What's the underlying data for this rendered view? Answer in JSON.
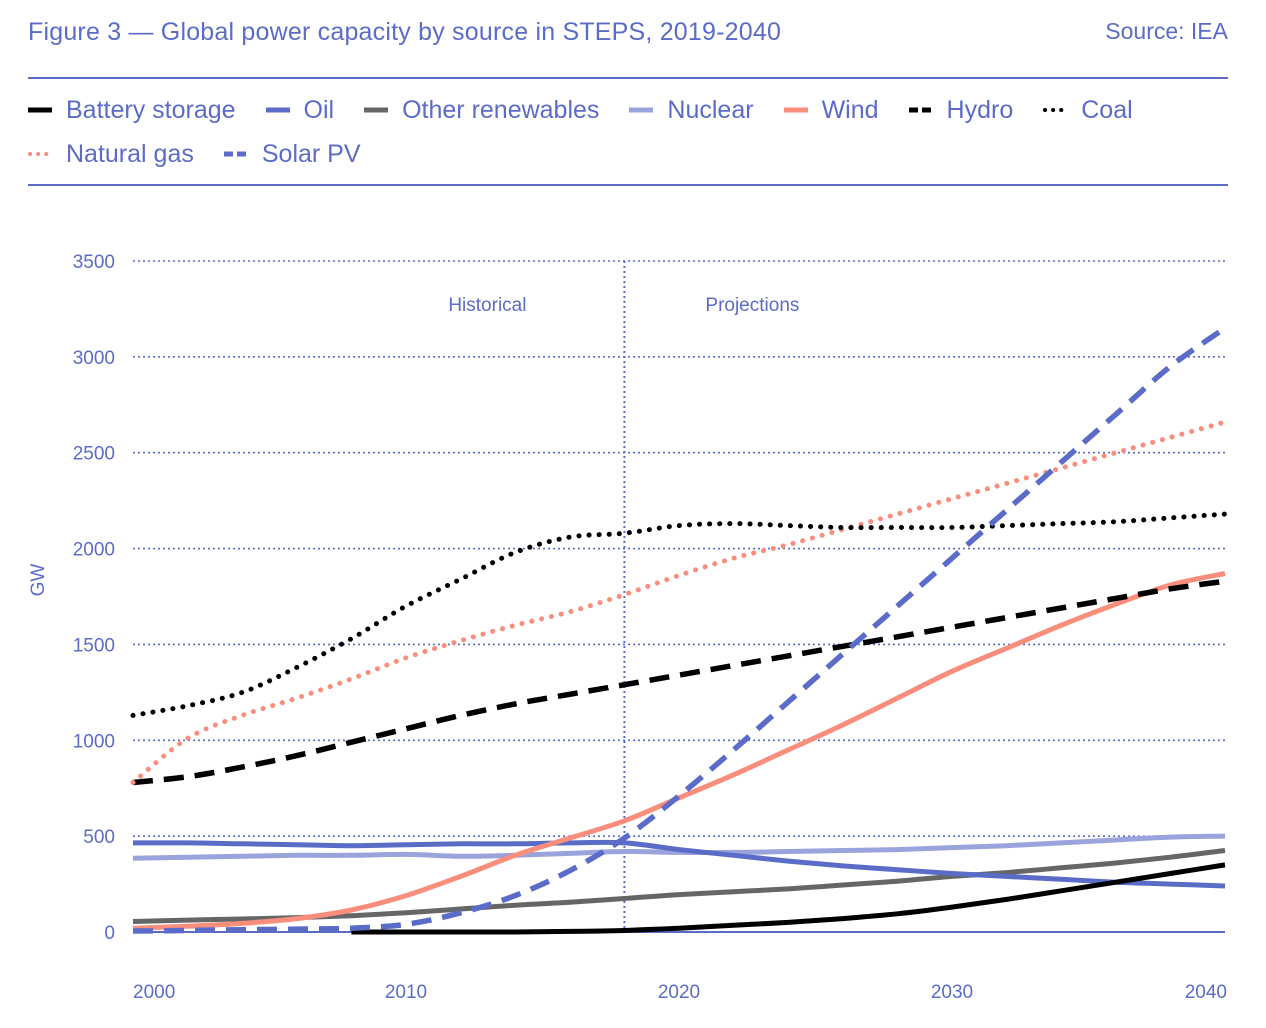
{
  "header": {
    "title": "Figure 3 — Global power capacity by source in STEPS, 2019-2040",
    "source": "Source: IEA"
  },
  "chart_data": {
    "type": "line",
    "title": "Figure 3 — Global power capacity by source in STEPS, 2019-2040",
    "xlabel": "",
    "ylabel": "GW",
    "xlim": [
      2000,
      2040
    ],
    "ylim": [
      0,
      3500
    ],
    "x_ticks": [
      "2000",
      "2010",
      "2020",
      "2030",
      "2040"
    ],
    "y_ticks": [
      "0",
      "500",
      "1000",
      "1500",
      "2000",
      "2500",
      "3000",
      "3500"
    ],
    "grid": "horizontal dotted",
    "divider_year": 2018,
    "annotations": [
      "Historical",
      "Projections"
    ],
    "legend_position": "top",
    "series": [
      {
        "name": "Battery storage",
        "color": "#000000",
        "style": "solid",
        "x": [
          2008,
          2010,
          2012,
          2014,
          2016,
          2018,
          2020,
          2022,
          2024,
          2026,
          2028,
          2030,
          2032,
          2034,
          2036,
          2038,
          2040
        ],
        "values": [
          0,
          0,
          0,
          0,
          3,
          8,
          20,
          35,
          50,
          70,
          95,
          130,
          170,
          215,
          260,
          305,
          350
        ]
      },
      {
        "name": "Oil",
        "color": "#5b6cc8",
        "style": "solid",
        "x": [
          2000,
          2002,
          2004,
          2006,
          2008,
          2010,
          2012,
          2014,
          2016,
          2018,
          2020,
          2022,
          2024,
          2026,
          2028,
          2030,
          2032,
          2034,
          2036,
          2038,
          2040
        ],
        "values": [
          465,
          465,
          460,
          455,
          450,
          455,
          460,
          460,
          465,
          465,
          430,
          400,
          370,
          345,
          325,
          305,
          290,
          275,
          260,
          250,
          240
        ]
      },
      {
        "name": "Other renewables",
        "color": "#666666",
        "style": "solid",
        "x": [
          2000,
          2002,
          2004,
          2006,
          2008,
          2010,
          2012,
          2014,
          2016,
          2018,
          2020,
          2022,
          2024,
          2026,
          2028,
          2030,
          2032,
          2034,
          2036,
          2038,
          2040
        ],
        "values": [
          55,
          62,
          68,
          75,
          85,
          100,
          120,
          140,
          155,
          175,
          195,
          210,
          225,
          245,
          265,
          290,
          310,
          335,
          360,
          390,
          425
        ]
      },
      {
        "name": "Nuclear",
        "color": "#9aa3dc",
        "style": "solid",
        "x": [
          2000,
          2002,
          2004,
          2006,
          2008,
          2010,
          2012,
          2014,
          2016,
          2018,
          2020,
          2022,
          2024,
          2026,
          2028,
          2030,
          2032,
          2034,
          2036,
          2038,
          2040
        ],
        "values": [
          385,
          390,
          395,
          400,
          400,
          405,
          395,
          400,
          410,
          420,
          415,
          415,
          420,
          425,
          430,
          440,
          450,
          465,
          480,
          495,
          500
        ]
      },
      {
        "name": "Wind",
        "color": "#f98e7d",
        "style": "solid",
        "x": [
          2000,
          2002,
          2004,
          2006,
          2008,
          2010,
          2012,
          2014,
          2016,
          2018,
          2020,
          2022,
          2024,
          2026,
          2028,
          2030,
          2032,
          2034,
          2036,
          2038,
          2040
        ],
        "values": [
          20,
          30,
          45,
          70,
          115,
          190,
          290,
          400,
          490,
          580,
          700,
          820,
          950,
          1080,
          1220,
          1360,
          1480,
          1600,
          1710,
          1810,
          1870
        ]
      },
      {
        "name": "Hydro",
        "color": "#000000",
        "style": "dash",
        "x": [
          2000,
          2002,
          2004,
          2006,
          2008,
          2010,
          2012,
          2014,
          2016,
          2018,
          2020,
          2022,
          2024,
          2026,
          2028,
          2030,
          2032,
          2034,
          2036,
          2038,
          2040
        ],
        "values": [
          780,
          810,
          860,
          920,
          990,
          1060,
          1130,
          1190,
          1240,
          1290,
          1340,
          1390,
          1440,
          1490,
          1540,
          1590,
          1640,
          1690,
          1740,
          1790,
          1830
        ]
      },
      {
        "name": "Coal",
        "color": "#000000",
        "style": "dot",
        "x": [
          2000,
          2002,
          2004,
          2006,
          2008,
          2010,
          2012,
          2014,
          2016,
          2018,
          2020,
          2022,
          2024,
          2026,
          2028,
          2030,
          2032,
          2034,
          2036,
          2038,
          2040
        ],
        "values": [
          1130,
          1180,
          1250,
          1380,
          1530,
          1700,
          1840,
          1980,
          2060,
          2080,
          2120,
          2130,
          2120,
          2110,
          2110,
          2110,
          2120,
          2130,
          2140,
          2160,
          2180
        ]
      },
      {
        "name": "Natural gas",
        "color": "#f98e7d",
        "style": "dot",
        "x": [
          2000,
          2002,
          2004,
          2006,
          2008,
          2010,
          2012,
          2014,
          2016,
          2018,
          2020,
          2022,
          2024,
          2026,
          2028,
          2030,
          2032,
          2034,
          2036,
          2038,
          2040
        ],
        "values": [
          780,
          1010,
          1130,
          1220,
          1320,
          1430,
          1520,
          1600,
          1670,
          1760,
          1860,
          1950,
          2020,
          2100,
          2180,
          2260,
          2340,
          2420,
          2500,
          2580,
          2660
        ]
      },
      {
        "name": "Solar PV",
        "color": "#5b6cc8",
        "style": "dash",
        "x": [
          2000,
          2002,
          2004,
          2006,
          2008,
          2010,
          2012,
          2014,
          2016,
          2018,
          2020,
          2022,
          2024,
          2026,
          2028,
          2030,
          2032,
          2034,
          2036,
          2038,
          2040
        ],
        "values": [
          5,
          8,
          12,
          15,
          20,
          40,
          100,
          190,
          320,
          490,
          710,
          950,
          1200,
          1450,
          1700,
          1950,
          2200,
          2450,
          2700,
          2950,
          3150
        ]
      }
    ]
  }
}
